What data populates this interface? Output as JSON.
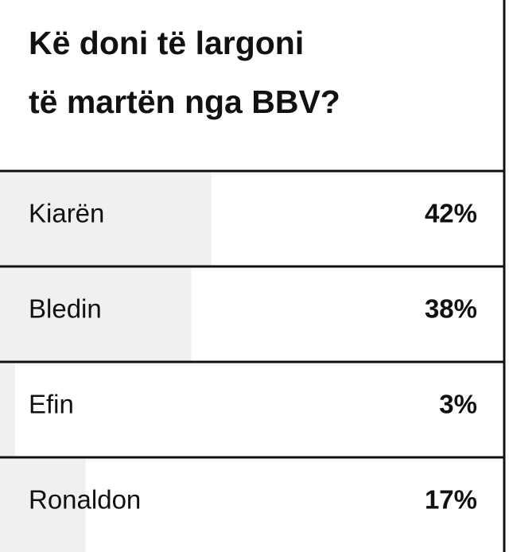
{
  "chart_data": {
    "type": "bar",
    "title": "Kë doni të largoni të martën nga BBV?",
    "categories": [
      "Kiarën",
      "Bledin",
      "Efin",
      "Ronaldon"
    ],
    "values": [
      42,
      38,
      3,
      17
    ],
    "value_labels": [
      "42%",
      "38%",
      "3%",
      "17%"
    ],
    "color": "#f2f0ee",
    "xlim": [
      0,
      100
    ]
  }
}
